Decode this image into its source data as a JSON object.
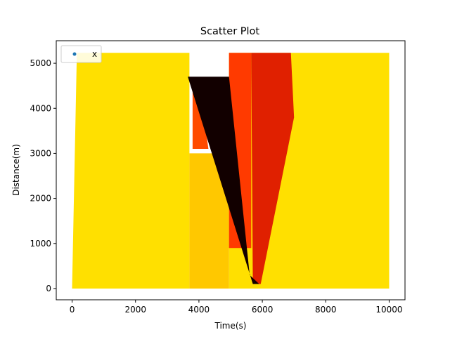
{
  "chart_data": {
    "type": "scatter",
    "title": "Scatter Plot",
    "xlabel": "Time(s)",
    "ylabel": "Distance(m)",
    "xlim": [
      -500,
      10500
    ],
    "ylim": [
      -250,
      5500
    ],
    "xticks": [
      0,
      2000,
      4000,
      6000,
      8000,
      10000
    ],
    "yticks": [
      0,
      1000,
      2000,
      3000,
      4000,
      5000
    ],
    "grid": false,
    "legend": {
      "position": "top-left",
      "entries": [
        {
          "label": "x",
          "color": "#1f77b4"
        }
      ]
    },
    "colormap": [
      "#ffff00",
      "#ffd700",
      "#ff4500",
      "#8b0000",
      "#100000"
    ],
    "regions": [
      {
        "name": "left background",
        "color": "#ffe000",
        "polygon": [
          [
            0,
            0
          ],
          [
            3700,
            0
          ],
          [
            3700,
            5230
          ],
          [
            150,
            5230
          ]
        ]
      },
      {
        "name": "right background",
        "color": "#ffe000",
        "polygon": [
          [
            4950,
            0
          ],
          [
            10000,
            0
          ],
          [
            10000,
            5230
          ],
          [
            4950,
            5230
          ]
        ]
      },
      {
        "name": "middle lower",
        "color": "#ffc800",
        "polygon": [
          [
            3700,
            0
          ],
          [
            4950,
            0
          ],
          [
            4950,
            3000
          ],
          [
            3700,
            3000
          ]
        ]
      },
      {
        "name": "orange left band",
        "color": "#ff4a00",
        "polygon": [
          [
            3800,
            3100
          ],
          [
            4300,
            3100
          ],
          [
            4000,
            4650
          ],
          [
            3800,
            4650
          ]
        ]
      },
      {
        "name": "orange right band",
        "color": "#ff3a00",
        "polygon": [
          [
            4950,
            900
          ],
          [
            5650,
            900
          ],
          [
            5650,
            5230
          ],
          [
            4950,
            5230
          ]
        ]
      },
      {
        "name": "red fan",
        "color": "#e02000",
        "polygon": [
          [
            5700,
            100
          ],
          [
            5950,
            100
          ],
          [
            7000,
            3800
          ],
          [
            6900,
            5230
          ],
          [
            5650,
            5230
          ]
        ]
      },
      {
        "name": "dark wedge",
        "color": "#120000",
        "polygon": [
          [
            3650,
            4700
          ],
          [
            4950,
            4700
          ],
          [
            5600,
            300
          ],
          [
            5900,
            100
          ],
          [
            5700,
            100
          ]
        ]
      }
    ]
  }
}
